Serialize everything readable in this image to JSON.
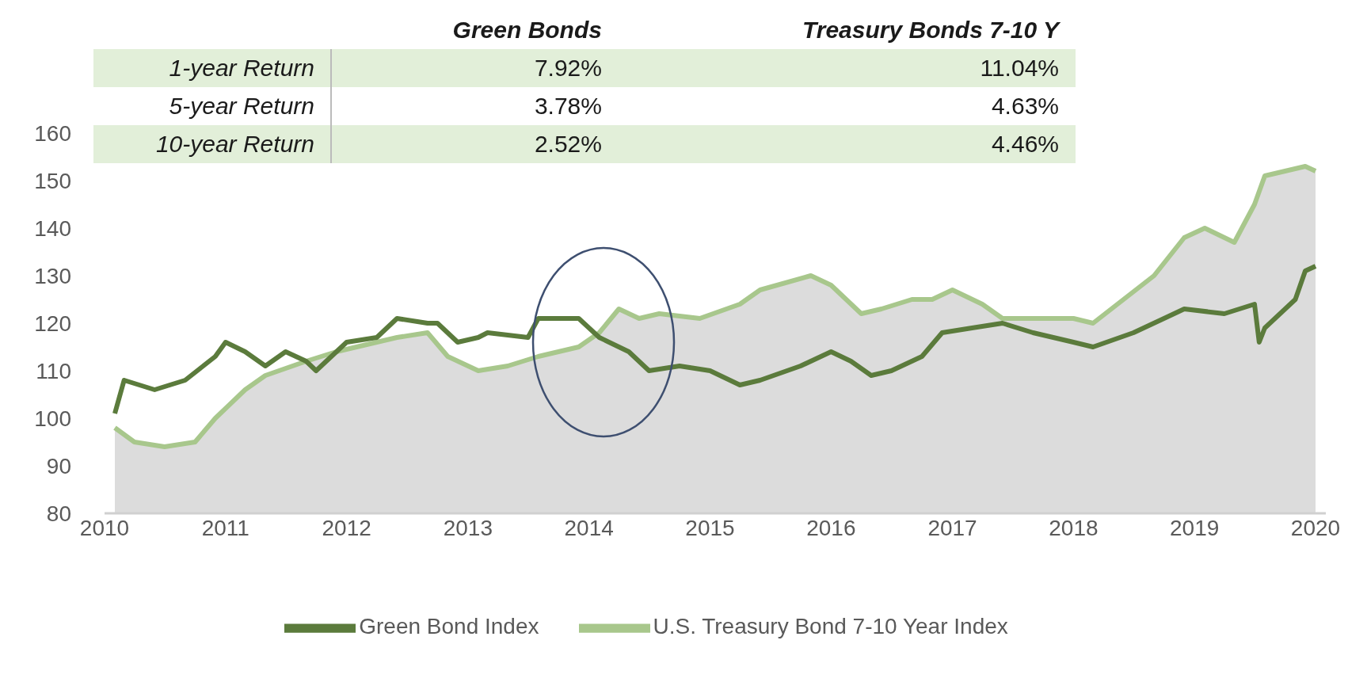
{
  "chart_data": [
    {
      "type": "line",
      "legend": "bottom",
      "grid": false,
      "marker": "none",
      "line_style": "solid",
      "ylim": [
        80,
        160
      ],
      "yticks": [
        80,
        90,
        100,
        110,
        120,
        130,
        140,
        150,
        160
      ],
      "xlim": [
        "2010-01",
        "2020-02"
      ],
      "xticks": [
        "2010",
        "2011",
        "2012",
        "2013",
        "2014",
        "2015",
        "2016",
        "2017",
        "2018",
        "2019",
        "2020"
      ],
      "series": [
        {
          "name": "Green Bond Index",
          "type": "line",
          "color": "#5b7b3c",
          "x": [
            "2010-02",
            "2010-03",
            "2010-06",
            "2010-09",
            "2010-12",
            "2011-01",
            "2011-03",
            "2011-05",
            "2011-07",
            "2011-09",
            "2011-10",
            "2012-01",
            "2012-04",
            "2012-06",
            "2012-09",
            "2012-10",
            "2012-12",
            "2013-02",
            "2013-03",
            "2013-07",
            "2013-08",
            "2013-12",
            "2014-02",
            "2014-05",
            "2014-07",
            "2014-10",
            "2015-01",
            "2015-04",
            "2015-06",
            "2015-10",
            "2016-01",
            "2016-03",
            "2016-05",
            "2016-07",
            "2016-10",
            "2016-12",
            "2017-03",
            "2017-06",
            "2017-09",
            "2018-01",
            "2018-03",
            "2018-07",
            "2018-10",
            "2018-12",
            "2019-04",
            "2019-07-01",
            "2019-07-15",
            "2019-08",
            "2019-11",
            "2019-12",
            "2020-01"
          ],
          "values": [
            101,
            108,
            106,
            108,
            113,
            116,
            114,
            111,
            114,
            112,
            110,
            116,
            117,
            121,
            120,
            120,
            116,
            117,
            118,
            117,
            121,
            121,
            117,
            114,
            110,
            111,
            110,
            107,
            108,
            111,
            114,
            112,
            109,
            110,
            113,
            118,
            119,
            120,
            118,
            116,
            115,
            118,
            121,
            123,
            122,
            124,
            116,
            119,
            125,
            131,
            132
          ]
        },
        {
          "name": "U.S. Treasury Bond 7-10 Year Index",
          "type": "area",
          "color": "#a8c78c",
          "x": [
            "2010-02",
            "2010-04",
            "2010-07",
            "2010-10",
            "2010-12",
            "2011-03",
            "2011-05",
            "2011-09",
            "2011-12",
            "2012-04",
            "2012-06",
            "2012-09",
            "2012-11",
            "2013-02",
            "2013-05",
            "2013-08",
            "2013-12",
            "2014-02",
            "2014-04",
            "2014-06",
            "2014-08",
            "2014-12",
            "2015-04",
            "2015-06",
            "2015-11",
            "2016-01",
            "2016-04",
            "2016-06",
            "2016-09",
            "2016-11",
            "2017-01",
            "2017-04",
            "2017-06",
            "2017-09",
            "2018-01",
            "2018-03",
            "2018-06",
            "2018-09",
            "2018-12",
            "2019-02",
            "2019-05",
            "2019-07",
            "2019-08",
            "2019-10",
            "2019-12",
            "2020-01"
          ],
          "values": [
            98,
            95,
            94,
            95,
            100,
            106,
            109,
            112,
            114,
            116,
            117,
            118,
            113,
            110,
            111,
            113,
            115,
            118,
            123,
            121,
            122,
            121,
            124,
            127,
            130,
            128,
            122,
            123,
            125,
            125,
            127,
            124,
            121,
            121,
            121,
            120,
            125,
            130,
            138,
            140,
            137,
            145,
            151,
            152,
            153,
            152
          ]
        }
      ]
    },
    {
      "type": "other",
      "categories": [
        "1-year Return",
        "5-year Return",
        "10-year Return"
      ],
      "series": [
        {
          "name": "Green Bonds",
          "values": [
            7.92,
            3.78,
            2.52
          ],
          "value_labels": [
            "7.92%",
            "3.78%",
            "2.52%"
          ]
        },
        {
          "name": "Treasury Bonds 7-10 Y",
          "values": [
            11.04,
            4.63,
            4.46
          ],
          "value_labels": [
            "11.04%",
            "4.63%",
            "4.46%"
          ]
        }
      ]
    }
  ]
}
